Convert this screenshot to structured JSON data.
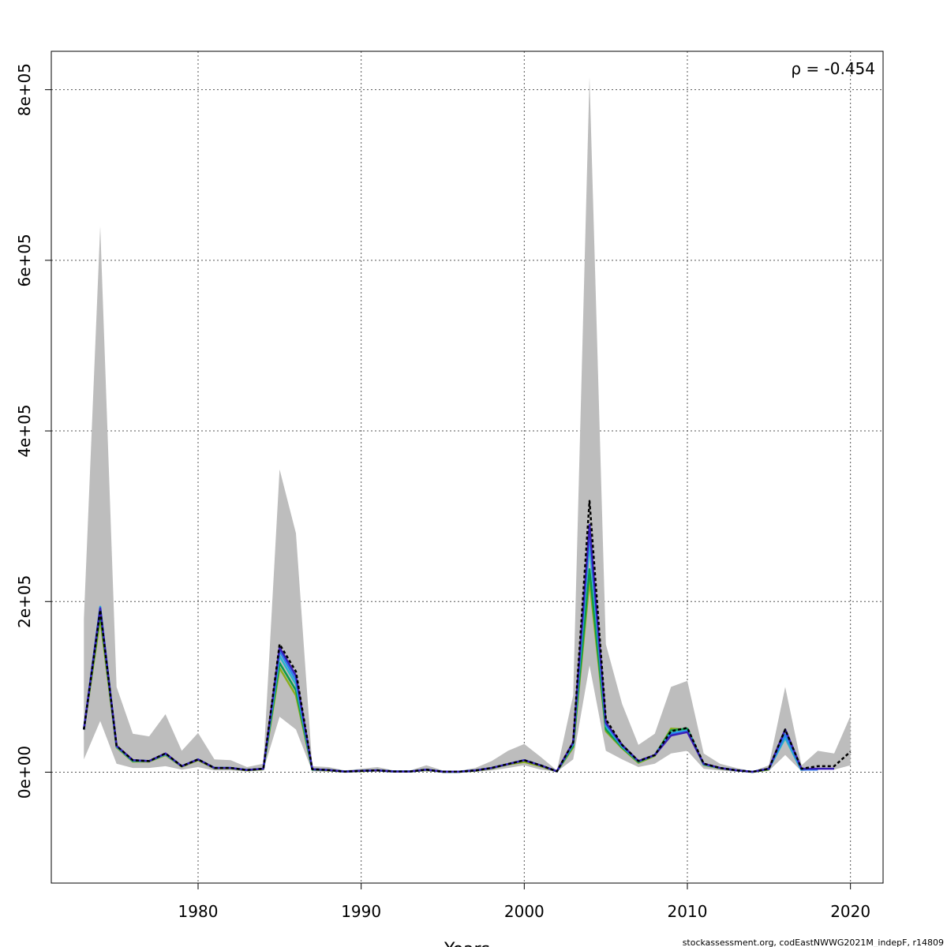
{
  "chart_data": {
    "type": "line",
    "title": "",
    "xlabel": "Years",
    "ylabel": "",
    "xlim": [
      1971,
      2022
    ],
    "ylim": [
      -130000,
      845000
    ],
    "grid": true,
    "x_ticks": [
      1980,
      1990,
      2000,
      2010,
      2020
    ],
    "x_tick_labels": [
      "1980",
      "1990",
      "2000",
      "2010",
      "2020"
    ],
    "y_ticks": [
      0,
      200000,
      400000,
      600000,
      800000
    ],
    "y_tick_labels": [
      "0e+00",
      "2e+05",
      "4e+05",
      "6e+05",
      "8e+05"
    ],
    "annotation": "ρ = -0.454",
    "footer": "stockassessment.org, codEastNWWG2021M_indepF, r14809",
    "band": {
      "x": [
        1973,
        1974,
        1975,
        1976,
        1977,
        1978,
        1979,
        1980,
        1981,
        1982,
        1983,
        1984,
        1985,
        1986,
        1987,
        1988,
        1989,
        1990,
        1991,
        1992,
        1993,
        1994,
        1995,
        1996,
        1997,
        1998,
        1999,
        2000,
        2001,
        2002,
        2003,
        2004,
        2005,
        2006,
        2007,
        2008,
        2009,
        2010,
        2011,
        2012,
        2013,
        2014,
        2015,
        2016,
        2017,
        2018,
        2019,
        2020
      ],
      "upper": [
        180000,
        640000,
        100000,
        45000,
        42000,
        68000,
        25000,
        46000,
        15000,
        14000,
        6000,
        10000,
        355000,
        280000,
        7000,
        6000,
        2000,
        4000,
        6000,
        2000,
        2000,
        8000,
        2000,
        1500,
        5000,
        13000,
        25000,
        33000,
        18000,
        2000,
        90000,
        815000,
        150000,
        80000,
        32000,
        45000,
        100000,
        107000,
        22000,
        10000,
        5000,
        1000,
        8000,
        100000,
        8000,
        25000,
        22000,
        66000
      ],
      "lower": [
        15000,
        60000,
        10000,
        5000,
        5000,
        7000,
        3000,
        6000,
        2000,
        2000,
        1000,
        2000,
        65000,
        50000,
        1000,
        500,
        200,
        300,
        400,
        200,
        200,
        600,
        200,
        200,
        500,
        2000,
        5000,
        8000,
        3000,
        500,
        15000,
        125000,
        25000,
        15000,
        6000,
        10000,
        22000,
        25000,
        4000,
        2000,
        700,
        200,
        1500,
        20000,
        1000,
        4000,
        3000,
        8000
      ]
    },
    "series": [
      {
        "color": "#000000",
        "dashed": true,
        "values": [
          50000,
          190000,
          31000,
          14000,
          13000,
          22000,
          7000,
          15000,
          5000,
          5000,
          2500,
          4000,
          150000,
          118000,
          3500,
          2500,
          600,
          1500,
          2200,
          800,
          800,
          3000,
          500,
          500,
          2000,
          5000,
          9500,
          14000,
          8000,
          1000,
          35000,
          318000,
          62000,
          32000,
          13000,
          20000,
          48000,
          52000,
          10000,
          5000,
          2200,
          400,
          4000,
          50000,
          4000,
          7000,
          7000,
          24000
        ]
      },
      {
        "color": "#3a1fb8",
        "dashed": false,
        "values": [
          50000,
          192000,
          31000,
          14000,
          13000,
          22000,
          7000,
          15000,
          5000,
          5000,
          2500,
          4000,
          146000,
          113000,
          3500,
          2500,
          600,
          1500,
          2200,
          800,
          800,
          3000,
          500,
          500,
          2000,
          5000,
          9500,
          14000,
          8000,
          1000,
          35000,
          290000,
          58000,
          32000,
          13000,
          20000,
          43000,
          47000,
          10000,
          5000,
          2200,
          400,
          4000,
          50000,
          4000,
          4000,
          4000,
          null
        ]
      },
      {
        "color": "#2b7ff0",
        "dashed": false,
        "values": [
          50000,
          193000,
          30500,
          14000,
          13000,
          21500,
          7000,
          15000,
          5000,
          5000,
          2500,
          4000,
          142000,
          108000,
          3500,
          2500,
          600,
          1500,
          2200,
          800,
          800,
          3000,
          500,
          500,
          2000,
          5000,
          9500,
          14000,
          8000,
          1000,
          34000,
          280000,
          56000,
          31000,
          13000,
          20000,
          45000,
          48000,
          9500,
          5000,
          2200,
          400,
          4000,
          44000,
          3000,
          3000,
          null,
          null
        ]
      },
      {
        "color": "#2ab5c8",
        "dashed": false,
        "values": [
          50000,
          194000,
          30000,
          13500,
          13000,
          21000,
          7000,
          15000,
          5000,
          5000,
          2500,
          4000,
          136000,
          103000,
          3500,
          2500,
          600,
          1500,
          2200,
          800,
          800,
          3000,
          500,
          500,
          2000,
          5000,
          9500,
          14000,
          8000,
          1000,
          33000,
          268000,
          54000,
          30000,
          12500,
          20000,
          46000,
          49000,
          9000,
          5000,
          2200,
          400,
          4000,
          40000,
          2000,
          null,
          null,
          null
        ]
      },
      {
        "color": "#0d9a4a",
        "dashed": false,
        "values": [
          50000,
          187000,
          30000,
          13000,
          13000,
          21000,
          7000,
          15000,
          5000,
          5000,
          2500,
          4000,
          128000,
          96000,
          3000,
          2500,
          600,
          1500,
          2200,
          800,
          800,
          3000,
          500,
          500,
          2000,
          5000,
          9500,
          14000,
          8000,
          1000,
          31000,
          238000,
          50000,
          29000,
          12000,
          20000,
          49000,
          51000,
          9000,
          5000,
          2200,
          400,
          3500,
          50000,
          null,
          null,
          null,
          null
        ]
      },
      {
        "color": "#8cae1e",
        "dashed": false,
        "values": [
          50000,
          180000,
          29000,
          12500,
          12500,
          20000,
          6500,
          14000,
          4500,
          4500,
          2000,
          3500,
          122000,
          90000,
          3000,
          2000,
          500,
          1200,
          2000,
          700,
          700,
          2500,
          400,
          400,
          1500,
          4500,
          9000,
          12000,
          7000,
          800,
          29000,
          225000,
          48000,
          28000,
          11000,
          19000,
          51000,
          50000,
          8500,
          4500,
          2000,
          300,
          3000,
          null,
          null,
          null,
          null,
          null
        ]
      }
    ]
  }
}
